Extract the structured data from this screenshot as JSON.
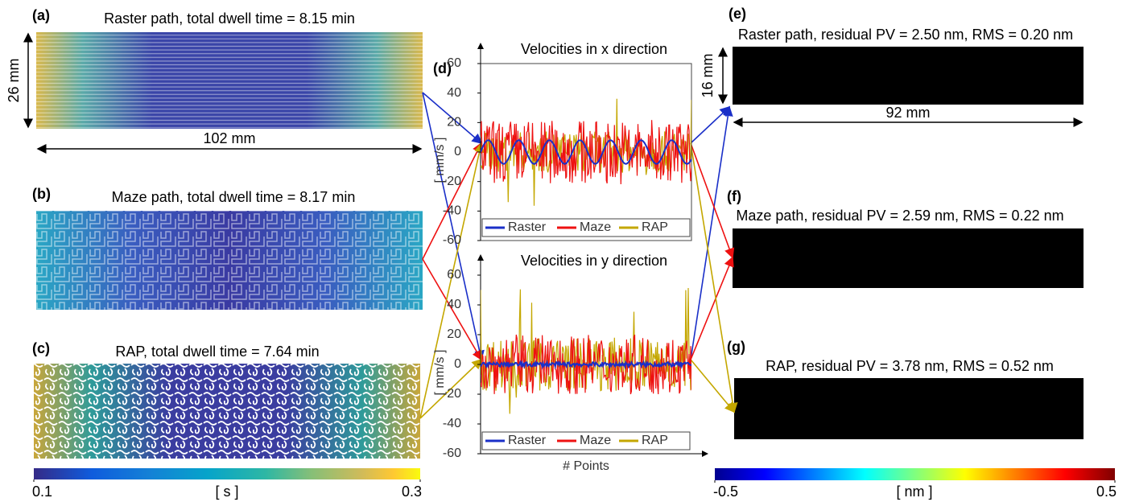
{
  "panels": {
    "a": {
      "label": "(a)",
      "title": "Raster path, total dwell time = 8.15 min",
      "height_label": "26 mm",
      "width_label": "102 mm"
    },
    "b": {
      "label": "(b)",
      "title": "Maze path, total dwell time = 8.17 min"
    },
    "c": {
      "label": "(c)",
      "title": "RAP, total dwell time = 7.64 min"
    },
    "e": {
      "label": "(e)",
      "title": "Raster path, residual PV = 2.50 nm, RMS = 0.20 nm",
      "height_label": "16 mm",
      "width_label": "92 mm"
    },
    "f": {
      "label": "(f)",
      "title": "Maze path, residual PV = 2.59 nm, RMS = 0.22 nm"
    },
    "g": {
      "label": "(g)",
      "title": "RAP, residual PV = 3.78 nm, RMS = 0.52 nm"
    }
  },
  "colorbar_left": {
    "unit": "[ s ]",
    "lim": [
      0.1,
      0.3
    ],
    "ticks": [
      0.1,
      0.3
    ]
  },
  "colorbar_right": {
    "unit": "[ nm ]",
    "lim": [
      -0.5,
      0.5
    ],
    "ticks": [
      -0.5,
      0.5
    ]
  },
  "chart_label": "(d)",
  "chart_data": [
    {
      "type": "line",
      "title": "Velocities in x direction",
      "ylabel": "[ mm/s ]",
      "ylim": [
        -60,
        60
      ],
      "yticks": [
        -60,
        -40,
        -20,
        0,
        20,
        40,
        60
      ],
      "series": [
        {
          "name": "Raster",
          "color": "#1a2fc8"
        },
        {
          "name": "Maze",
          "color": "#ee1111"
        },
        {
          "name": "RAP",
          "color": "#c4a700"
        }
      ]
    },
    {
      "type": "line",
      "title": "Velocities in y direction",
      "ylabel": "[ mm/s ]",
      "xlabel": "# Points",
      "ylim": [
        -60,
        60
      ],
      "yticks": [
        -60,
        -40,
        -20,
        0,
        20,
        40,
        60
      ],
      "series": [
        {
          "name": "Raster",
          "color": "#1a2fc8"
        },
        {
          "name": "Maze",
          "color": "#ee1111"
        },
        {
          "name": "RAP",
          "color": "#c4a700"
        }
      ]
    }
  ]
}
